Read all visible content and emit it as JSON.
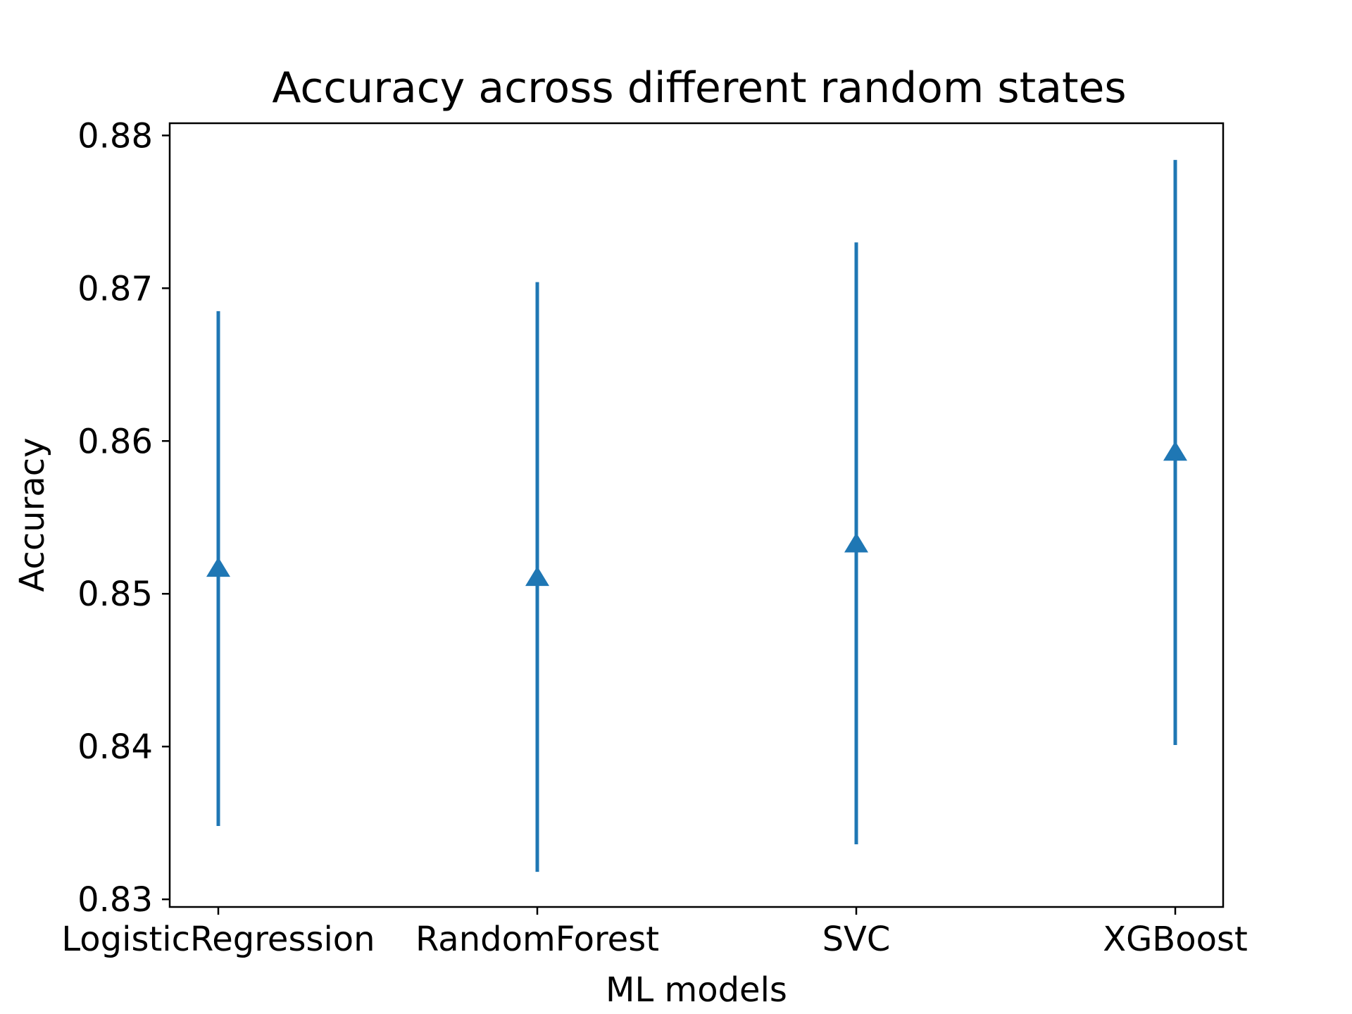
{
  "chart_data": {
    "type": "errorbar",
    "title": "Accuracy across different random states",
    "xlabel": "ML models",
    "ylabel": "Accuracy",
    "categories": [
      "LogisticRegression",
      "RandomForest",
      "SVC",
      "XGBoost"
    ],
    "series": [
      {
        "marker": "triangle-up",
        "color": "#1f77b4",
        "values": [
          0.8516,
          0.851,
          0.8532,
          0.8592
        ],
        "lower": [
          0.8348,
          0.8318,
          0.8336,
          0.8401
        ],
        "upper": [
          0.8685,
          0.8704,
          0.873,
          0.8784
        ]
      }
    ],
    "ylim": [
      0.8295,
      0.8808
    ],
    "yticks": [
      "0.83",
      "0.84",
      "0.85",
      "0.86",
      "0.87",
      "0.88"
    ],
    "grid": false
  }
}
